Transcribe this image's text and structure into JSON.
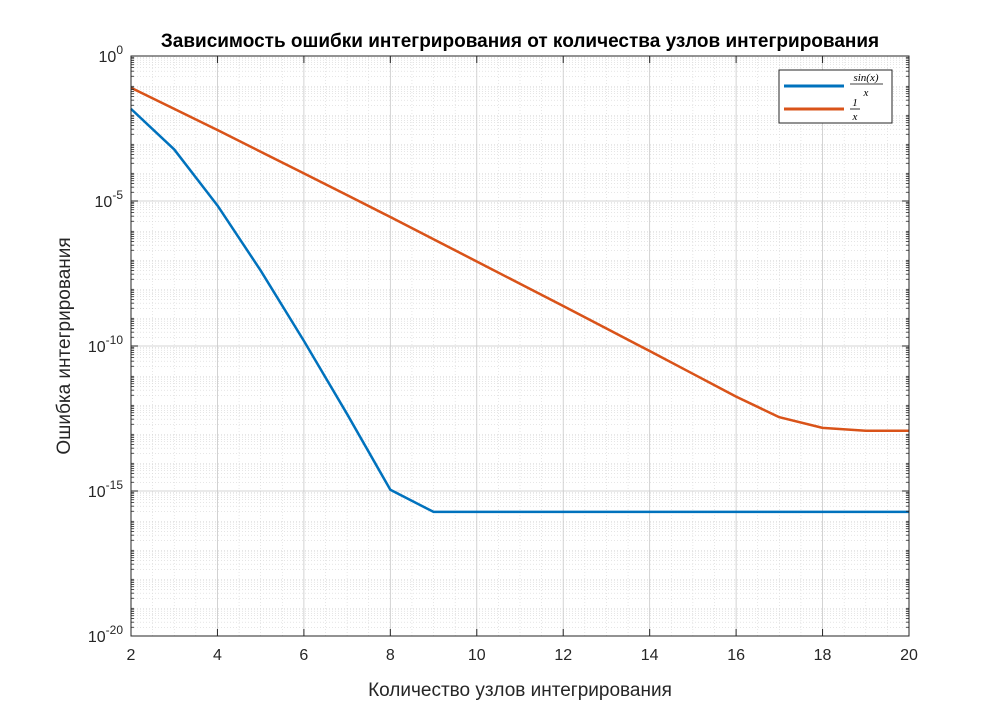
{
  "chart_data": {
    "type": "line",
    "title": "Зависимость ошибки интегрирования от количества узлов интегрирования",
    "xlabel": "Количество узлов интегрирования",
    "ylabel": "Ошибка интегрирования",
    "xlim": [
      2,
      20
    ],
    "ylim": [
      1e-20,
      1
    ],
    "yscale": "log",
    "grid": true,
    "minor_grid": true,
    "legend_position": "top-right",
    "x_ticks": [
      "2",
      "4",
      "6",
      "8",
      "10",
      "12",
      "14",
      "16",
      "18",
      "20"
    ],
    "y_ticks": [
      {
        "base": "10",
        "exp": "0"
      },
      {
        "base": "10",
        "exp": "-5"
      },
      {
        "base": "10",
        "exp": "-10"
      },
      {
        "base": "10",
        "exp": "-15"
      },
      {
        "base": "10",
        "exp": "-20"
      }
    ],
    "x": [
      2,
      3,
      4,
      5,
      6,
      7,
      8,
      9,
      10,
      11,
      12,
      13,
      14,
      15,
      16,
      17,
      18,
      19,
      20
    ],
    "series": [
      {
        "name_num": "sin(x)",
        "name_den": "x",
        "color": "#0072BD",
        "values": [
          0.015,
          0.0006,
          7e-06,
          4e-08,
          1.5e-10,
          4.5e-13,
          1.1e-15,
          1.9e-16,
          1.9e-16,
          1.9e-16,
          1.9e-16,
          1.9e-16,
          1.9e-16,
          1.9e-16,
          1.9e-16,
          1.9e-16,
          1.9e-16,
          1.9e-16,
          1.9e-16
        ]
      },
      {
        "name_num": "1",
        "name_den": "x",
        "color": "#D95319",
        "values": [
          0.08,
          0.015,
          0.0028,
          0.0005,
          9e-05,
          1.6e-05,
          2.8e-06,
          4.8e-07,
          8.2e-08,
          1.4e-08,
          2.4e-09,
          4e-10,
          6.7e-11,
          1.1e-11,
          1.8e-12,
          3.5e-13,
          1.5e-13,
          1.2e-13,
          1.2e-13
        ]
      }
    ]
  }
}
